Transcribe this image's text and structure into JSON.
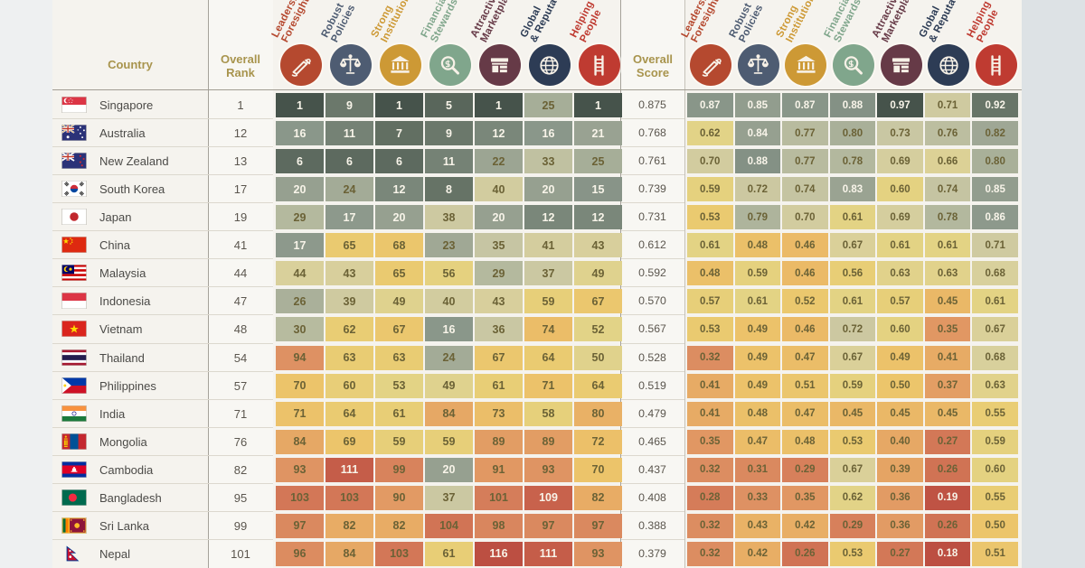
{
  "header": {
    "country": "Country",
    "overall_rank": "Overall Rank",
    "overall_score": "Overall Score"
  },
  "chart_data": {
    "type": "heatmap",
    "description": "Country governance index: pillar ranks (left heatmap) and pillar scores (right heatmap)",
    "legend_position": "none",
    "rank_scale": [
      1,
      116
    ],
    "score_scale": [
      0.18,
      0.97
    ],
    "color_best": "#46534b",
    "color_mid": "#e9cd74",
    "color_worst": "#bc4f42",
    "pillars": [
      {
        "label_line1": "Leadership",
        "label_line2": "Foresight",
        "color": "#b5492f",
        "icon": "telescope-hand-icon"
      },
      {
        "label_line1": "Robust",
        "label_line2": "Policies",
        "color": "#4e5c72",
        "icon": "scales-icon"
      },
      {
        "label_line1": "Strong",
        "label_line2": "Institutions",
        "color": "#cd9935",
        "icon": "bank-icon"
      },
      {
        "label_line1": "Financial",
        "label_line2": "Stewardship",
        "color": "#80a68c",
        "icon": "magnifier-icon"
      },
      {
        "label_line1": "Attractive",
        "label_line2": "Marketplace",
        "color": "#663a47",
        "icon": "storefront-icon"
      },
      {
        "label_line1": "Global",
        "label_line2": "& Reputation",
        "color": "#2d3c55",
        "icon": "globe-icon"
      },
      {
        "label_line1": "Helping",
        "label_line2": "People",
        "color": "#bf3b31",
        "icon": "ladder-icon"
      }
    ],
    "rows": [
      {
        "country": "Singapore",
        "flag": "sg",
        "overall_rank": "1",
        "pillar_ranks": [
          1,
          9,
          1,
          5,
          1,
          25,
          1
        ],
        "overall_score": "0.875",
        "pillar_scores": [
          "0.87",
          "0.85",
          "0.87",
          "0.88",
          "0.97",
          "0.71",
          "0.92"
        ]
      },
      {
        "country": "Australia",
        "flag": "au",
        "overall_rank": "12",
        "pillar_ranks": [
          16,
          11,
          7,
          9,
          12,
          16,
          21
        ],
        "overall_score": "0.768",
        "pillar_scores": [
          "0.62",
          "0.84",
          "0.77",
          "0.80",
          "0.73",
          "0.76",
          "0.82"
        ]
      },
      {
        "country": "New Zealand",
        "flag": "nz",
        "overall_rank": "13",
        "pillar_ranks": [
          6,
          6,
          6,
          11,
          22,
          33,
          25
        ],
        "overall_score": "0.761",
        "pillar_scores": [
          "0.70",
          "0.88",
          "0.77",
          "0.78",
          "0.69",
          "0.66",
          "0.80"
        ]
      },
      {
        "country": "South Korea",
        "flag": "kr",
        "overall_rank": "17",
        "pillar_ranks": [
          20,
          24,
          12,
          8,
          40,
          20,
          15
        ],
        "overall_score": "0.739",
        "pillar_scores": [
          "0.59",
          "0.72",
          "0.74",
          "0.83",
          "0.60",
          "0.74",
          "0.85"
        ]
      },
      {
        "country": "Japan",
        "flag": "jp",
        "overall_rank": "19",
        "pillar_ranks": [
          29,
          17,
          20,
          38,
          20,
          12,
          12
        ],
        "overall_score": "0.731",
        "pillar_scores": [
          "0.53",
          "0.79",
          "0.70",
          "0.61",
          "0.69",
          "0.78",
          "0.86"
        ]
      },
      {
        "country": "China",
        "flag": "cn",
        "overall_rank": "41",
        "pillar_ranks": [
          17,
          65,
          68,
          23,
          35,
          41,
          43
        ],
        "overall_score": "0.612",
        "pillar_scores": [
          "0.61",
          "0.48",
          "0.46",
          "0.67",
          "0.61",
          "0.61",
          "0.71"
        ]
      },
      {
        "country": "Malaysia",
        "flag": "my",
        "overall_rank": "44",
        "pillar_ranks": [
          44,
          43,
          65,
          56,
          29,
          37,
          49
        ],
        "overall_score": "0.592",
        "pillar_scores": [
          "0.48",
          "0.59",
          "0.46",
          "0.56",
          "0.63",
          "0.63",
          "0.68"
        ]
      },
      {
        "country": "Indonesia",
        "flag": "id",
        "overall_rank": "47",
        "pillar_ranks": [
          26,
          39,
          49,
          40,
          43,
          59,
          67
        ],
        "overall_score": "0.570",
        "pillar_scores": [
          "0.57",
          "0.61",
          "0.52",
          "0.61",
          "0.57",
          "0.45",
          "0.61"
        ]
      },
      {
        "country": "Vietnam",
        "flag": "vn",
        "overall_rank": "48",
        "pillar_ranks": [
          30,
          62,
          67,
          16,
          36,
          74,
          52
        ],
        "overall_score": "0.567",
        "pillar_scores": [
          "0.53",
          "0.49",
          "0.46",
          "0.72",
          "0.60",
          "0.35",
          "0.67"
        ]
      },
      {
        "country": "Thailand",
        "flag": "th",
        "overall_rank": "54",
        "pillar_ranks": [
          94,
          63,
          63,
          24,
          67,
          64,
          50
        ],
        "overall_score": "0.528",
        "pillar_scores": [
          "0.32",
          "0.49",
          "0.47",
          "0.67",
          "0.49",
          "0.41",
          "0.68"
        ]
      },
      {
        "country": "Philippines",
        "flag": "ph",
        "overall_rank": "57",
        "pillar_ranks": [
          70,
          60,
          53,
          49,
          61,
          71,
          64
        ],
        "overall_score": "0.519",
        "pillar_scores": [
          "0.41",
          "0.49",
          "0.51",
          "0.59",
          "0.50",
          "0.37",
          "0.63"
        ]
      },
      {
        "country": "India",
        "flag": "in",
        "overall_rank": "71",
        "pillar_ranks": [
          71,
          64,
          61,
          84,
          73,
          58,
          80
        ],
        "overall_score": "0.479",
        "pillar_scores": [
          "0.41",
          "0.48",
          "0.47",
          "0.45",
          "0.45",
          "0.45",
          "0.55"
        ]
      },
      {
        "country": "Mongolia",
        "flag": "mn",
        "overall_rank": "76",
        "pillar_ranks": [
          84,
          69,
          59,
          59,
          89,
          89,
          72
        ],
        "overall_score": "0.465",
        "pillar_scores": [
          "0.35",
          "0.47",
          "0.48",
          "0.53",
          "0.40",
          "0.27",
          "0.59"
        ]
      },
      {
        "country": "Cambodia",
        "flag": "kh",
        "overall_rank": "82",
        "pillar_ranks": [
          93,
          111,
          99,
          20,
          91,
          93,
          70
        ],
        "overall_score": "0.437",
        "pillar_scores": [
          "0.32",
          "0.31",
          "0.29",
          "0.67",
          "0.39",
          "0.26",
          "0.60"
        ]
      },
      {
        "country": "Bangladesh",
        "flag": "bd",
        "overall_rank": "95",
        "pillar_ranks": [
          103,
          103,
          90,
          37,
          101,
          109,
          82
        ],
        "overall_score": "0.408",
        "pillar_scores": [
          "0.28",
          "0.33",
          "0.35",
          "0.62",
          "0.36",
          "0.19",
          "0.55"
        ]
      },
      {
        "country": "Sri Lanka",
        "flag": "lk",
        "overall_rank": "99",
        "pillar_ranks": [
          97,
          82,
          82,
          104,
          98,
          97,
          97
        ],
        "overall_score": "0.388",
        "pillar_scores": [
          "0.32",
          "0.43",
          "0.42",
          "0.29",
          "0.36",
          "0.26",
          "0.50"
        ]
      },
      {
        "country": "Nepal",
        "flag": "np",
        "overall_rank": "101",
        "pillar_ranks": [
          96,
          84,
          103,
          61,
          116,
          111,
          93
        ],
        "overall_score": "0.379",
        "pillar_scores": [
          "0.32",
          "0.42",
          "0.26",
          "0.53",
          "0.27",
          "0.18",
          "0.51"
        ]
      }
    ]
  }
}
